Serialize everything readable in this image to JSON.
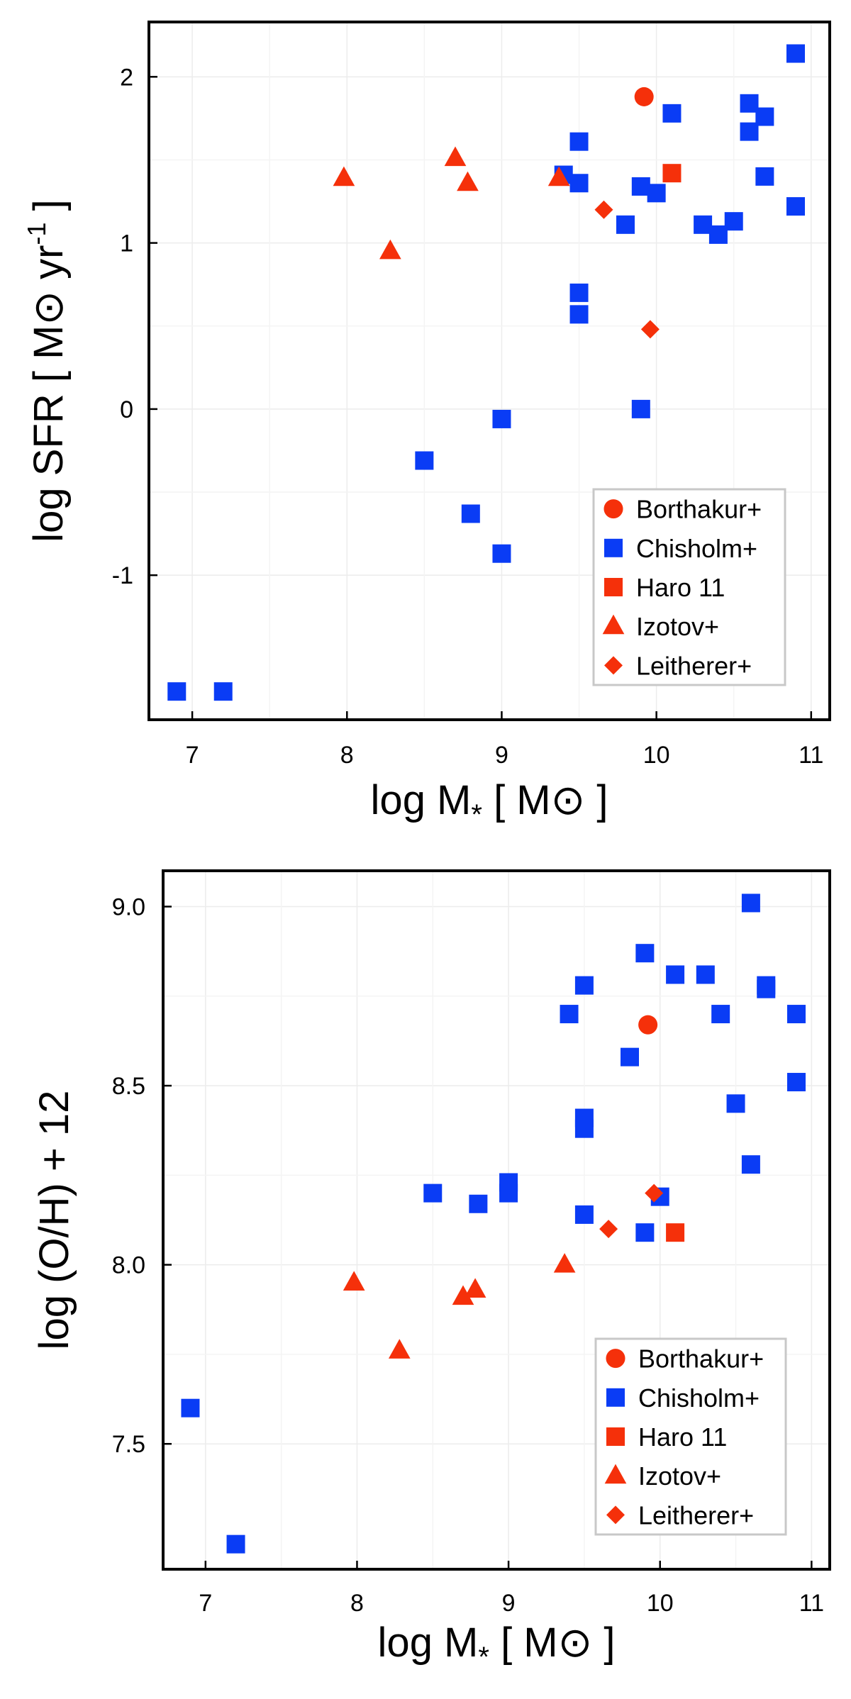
{
  "chart_data": [
    {
      "type": "scatter",
      "title": "",
      "xlabel": "log M* [ M⊙ ]",
      "ylabel": "log SFR [ M⊙ yr⁻¹ ]",
      "xlim": [
        6.72,
        11.12
      ],
      "ylim": [
        -1.87,
        2.33
      ],
      "xticks": [
        7,
        8,
        9,
        10,
        11
      ],
      "xtick_labels": [
        "7",
        "8",
        "9",
        "10",
        "11"
      ],
      "yticks": [
        -1,
        0,
        1,
        2
      ],
      "ytick_labels": [
        "-1",
        "0",
        "1",
        "2"
      ],
      "grid": true,
      "legend_position": "bottom-right",
      "series": [
        {
          "name": "Borthakur+",
          "marker": "circle",
          "color": "#f5300a",
          "points": [
            [
              9.92,
              1.88
            ]
          ]
        },
        {
          "name": "Chisholm+",
          "marker": "square",
          "color": "#0a3cf5",
          "points": [
            [
              6.9,
              -1.7
            ],
            [
              7.2,
              -1.7
            ],
            [
              8.5,
              -0.31
            ],
            [
              8.8,
              -0.63
            ],
            [
              9.0,
              -0.87
            ],
            [
              9.0,
              -0.06
            ],
            [
              9.4,
              1.41
            ],
            [
              9.5,
              1.36
            ],
            [
              9.5,
              1.61
            ],
            [
              9.5,
              0.7
            ],
            [
              9.5,
              0.57
            ],
            [
              9.8,
              1.11
            ],
            [
              9.9,
              1.34
            ],
            [
              9.9,
              0.0
            ],
            [
              10.0,
              1.3
            ],
            [
              10.1,
              1.78
            ],
            [
              10.3,
              1.11
            ],
            [
              10.4,
              1.05
            ],
            [
              10.5,
              1.13
            ],
            [
              10.6,
              1.84
            ],
            [
              10.6,
              1.67
            ],
            [
              10.7,
              1.76
            ],
            [
              10.7,
              1.4
            ],
            [
              10.9,
              1.22
            ],
            [
              10.9,
              2.14
            ]
          ]
        },
        {
          "name": "Haro 11",
          "marker": "square",
          "color": "#f5300a",
          "points": [
            [
              10.1,
              1.42
            ]
          ]
        },
        {
          "name": "Izotov+",
          "marker": "triangle",
          "color": "#f5300a",
          "points": [
            [
              7.98,
              1.39
            ],
            [
              8.28,
              0.95
            ],
            [
              8.7,
              1.51
            ],
            [
              8.78,
              1.36
            ],
            [
              9.37,
              1.39
            ]
          ]
        },
        {
          "name": "Leitherer+",
          "marker": "diamond",
          "color": "#f5300a",
          "points": [
            [
              9.66,
              1.2
            ],
            [
              9.96,
              0.48
            ]
          ]
        }
      ]
    },
    {
      "type": "scatter",
      "title": "",
      "xlabel": "log M* [ M⊙ ]",
      "ylabel": "log (O/H) + 12",
      "xlim": [
        6.72,
        11.12
      ],
      "ylim": [
        7.15,
        9.1
      ],
      "xticks": [
        7,
        8,
        9,
        10,
        11
      ],
      "xtick_labels": [
        "7",
        "8",
        "9",
        "10",
        "11"
      ],
      "yticks": [
        7.5,
        8.0,
        8.5,
        9.0
      ],
      "ytick_labels": [
        "7.5",
        "8.0",
        "8.5",
        "9.0"
      ],
      "grid": true,
      "legend_position": "bottom-right",
      "series": [
        {
          "name": "Borthakur+",
          "marker": "circle",
          "color": "#f5300a",
          "points": [
            [
              9.92,
              8.67
            ]
          ]
        },
        {
          "name": "Chisholm+",
          "marker": "square",
          "color": "#0a3cf5",
          "points": [
            [
              6.9,
              7.6
            ],
            [
              7.2,
              7.22
            ],
            [
              8.5,
              8.2
            ],
            [
              8.8,
              8.17
            ],
            [
              9.0,
              8.23
            ],
            [
              9.0,
              8.2
            ],
            [
              9.4,
              8.7
            ],
            [
              9.5,
              8.78
            ],
            [
              9.5,
              8.41
            ],
            [
              9.5,
              8.38
            ],
            [
              9.5,
              8.14
            ],
            [
              9.8,
              8.58
            ],
            [
              9.9,
              8.87
            ],
            [
              9.9,
              8.09
            ],
            [
              10.0,
              8.19
            ],
            [
              10.1,
              8.81
            ],
            [
              10.3,
              8.81
            ],
            [
              10.4,
              8.7
            ],
            [
              10.5,
              8.45
            ],
            [
              10.6,
              9.01
            ],
            [
              10.6,
              8.28
            ],
            [
              10.7,
              8.78
            ],
            [
              10.7,
              8.77
            ],
            [
              10.9,
              8.7
            ],
            [
              10.9,
              8.51
            ]
          ]
        },
        {
          "name": "Haro 11",
          "marker": "square",
          "color": "#f5300a",
          "points": [
            [
              10.1,
              8.09
            ]
          ]
        },
        {
          "name": "Izotov+",
          "marker": "triangle",
          "color": "#f5300a",
          "points": [
            [
              7.98,
              7.95
            ],
            [
              8.28,
              7.76
            ],
            [
              8.7,
              7.91
            ],
            [
              8.78,
              7.93
            ],
            [
              9.37,
              8.0
            ]
          ]
        },
        {
          "name": "Leitherer+",
          "marker": "diamond",
          "color": "#f5300a",
          "points": [
            [
              9.66,
              8.1
            ],
            [
              9.96,
              8.2
            ]
          ]
        }
      ]
    }
  ]
}
